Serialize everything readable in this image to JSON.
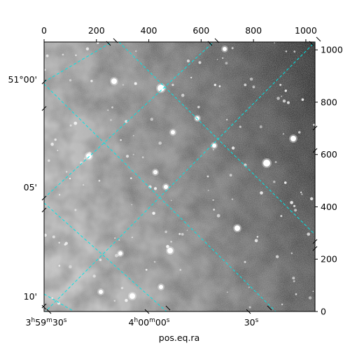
{
  "chart_data": {
    "type": "image",
    "title": "",
    "xlabel": "pos.eq.ra",
    "ylabel": "",
    "pixel_xlim": [
      0,
      1035
    ],
    "pixel_ylim": [
      0,
      1030
    ],
    "top_axis_ticks": [
      "0",
      "200",
      "400",
      "600",
      "800",
      "1000"
    ],
    "top_axis_values": [
      0,
      200,
      400,
      600,
      800,
      1000
    ],
    "right_axis_ticks": [
      "0",
      "200",
      "400",
      "600",
      "800",
      "1000"
    ],
    "right_axis_values": [
      0,
      200,
      400,
      600,
      800,
      1000
    ],
    "ra_ticks": [
      {
        "h": "3",
        "m": "59",
        "s": "30",
        "kind": "hms"
      },
      {
        "h": "4",
        "m": "00",
        "s": "00",
        "kind": "hms"
      },
      {
        "s": "30",
        "kind": "s"
      }
    ],
    "dec_ticks": [
      {
        "text": "51°00'",
        "dec_arcmin": 0
      },
      {
        "text": "05'",
        "dec_arcmin": 5
      },
      {
        "text": "10'",
        "dec_arcmin": 10
      }
    ],
    "grid": true,
    "grid_color": "#00e5e5",
    "colormap": "gray"
  }
}
